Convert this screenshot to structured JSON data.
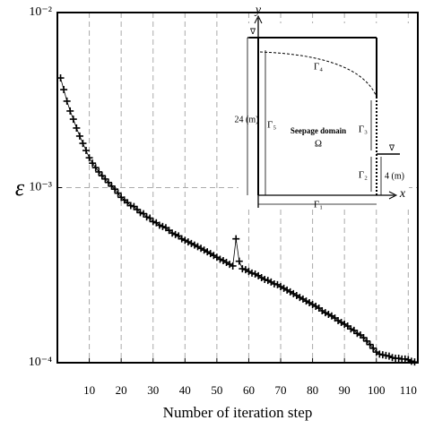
{
  "chart_data": {
    "type": "line",
    "x_label": "Number of iteration step",
    "y_label": "ε",
    "x": [
      1,
      2,
      3,
      4,
      5,
      6,
      7,
      8,
      9,
      10,
      11,
      12,
      13,
      14,
      15,
      16,
      17,
      18,
      19,
      20,
      21,
      22,
      23,
      24,
      25,
      26,
      27,
      28,
      29,
      30,
      31,
      32,
      33,
      34,
      35,
      36,
      37,
      38,
      39,
      40,
      41,
      42,
      43,
      44,
      45,
      46,
      47,
      48,
      49,
      50,
      51,
      52,
      53,
      54,
      55,
      56,
      57,
      58,
      59,
      60,
      61,
      62,
      63,
      64,
      65,
      66,
      67,
      68,
      69,
      70,
      71,
      72,
      73,
      74,
      75,
      76,
      77,
      78,
      79,
      80,
      81,
      82,
      83,
      84,
      85,
      86,
      87,
      88,
      89,
      90,
      91,
      92,
      93,
      94,
      95,
      96,
      97,
      98,
      99,
      100,
      101,
      102,
      103,
      104,
      105,
      106,
      107,
      108,
      109,
      110,
      111,
      112
    ],
    "series": [
      {
        "color": "#000000",
        "marker": "plus",
        "values": [
          0.00423,
          0.00363,
          0.00312,
          0.00274,
          0.00246,
          0.00219,
          0.00197,
          0.00179,
          0.00163,
          0.00148,
          0.00138,
          0.0013,
          0.00123,
          0.00117,
          0.00112,
          0.00107,
          0.00102,
          0.00098,
          0.00093,
          0.00088,
          0.00085,
          0.00082,
          0.00079,
          0.00078,
          0.00075,
          0.00072,
          0.00071,
          0.00068,
          0.00067,
          0.00064,
          0.00063,
          0.00061,
          0.0006,
          0.00059,
          0.00057,
          0.00055,
          0.00054,
          0.00053,
          0.00051,
          0.0005,
          0.00049,
          0.00048,
          0.00047,
          0.00046,
          0.00045,
          0.00044,
          0.00043,
          0.00042,
          0.00041,
          0.0004,
          0.00039,
          0.000383,
          0.000374,
          0.000365,
          0.000357,
          0.00051,
          0.00038,
          0.000344,
          0.00034,
          0.000332,
          0.000325,
          0.000321,
          0.000314,
          0.000306,
          0.000299,
          0.000295,
          0.000289,
          0.000282,
          0.000279,
          0.000272,
          0.000266,
          0.00026,
          0.000254,
          0.000248,
          0.000242,
          0.000236,
          0.000231,
          0.000225,
          0.00022,
          0.000215,
          0.00021,
          0.000205,
          0.000198,
          0.000193,
          0.000189,
          0.000185,
          0.00018,
          0.000174,
          0.00017,
          0.000166,
          0.000162,
          0.000156,
          0.000153,
          0.000147,
          0.000144,
          0.000139,
          0.000133,
          0.000127,
          0.000121,
          0.000115,
          0.000112,
          0.000111,
          0.00011,
          0.000109,
          0.000107,
          0.000106,
          0.000106,
          0.000105,
          0.000105,
          0.000104,
          0.000102,
          0.000101
        ]
      }
    ],
    "xlim": [
      0,
      113
    ],
    "xticks": [
      10,
      20,
      30,
      40,
      50,
      60,
      70,
      80,
      90,
      100,
      110
    ],
    "ylim": [
      0.0001,
      0.01
    ],
    "y_scale": "log",
    "yticks": [
      {
        "value": 0.0001,
        "label": "10⁻⁴"
      },
      {
        "value": 0.001,
        "label": "10⁻³"
      },
      {
        "value": 0.01,
        "label": "10⁻²"
      }
    ],
    "grid": true
  },
  "diagram": {
    "y_axis": "y",
    "x_axis": "x",
    "gamma1": "Γ₁",
    "gamma2": "Γ₂",
    "gamma3": "Γ₃",
    "gamma4": "Γ₄",
    "gamma5": "Γ₅",
    "height_left": "24 (m)",
    "height_right": "4 (m)",
    "domain": "Seepage domain",
    "omega": "Ω",
    "water_left": "∇",
    "water_right": "∇"
  }
}
